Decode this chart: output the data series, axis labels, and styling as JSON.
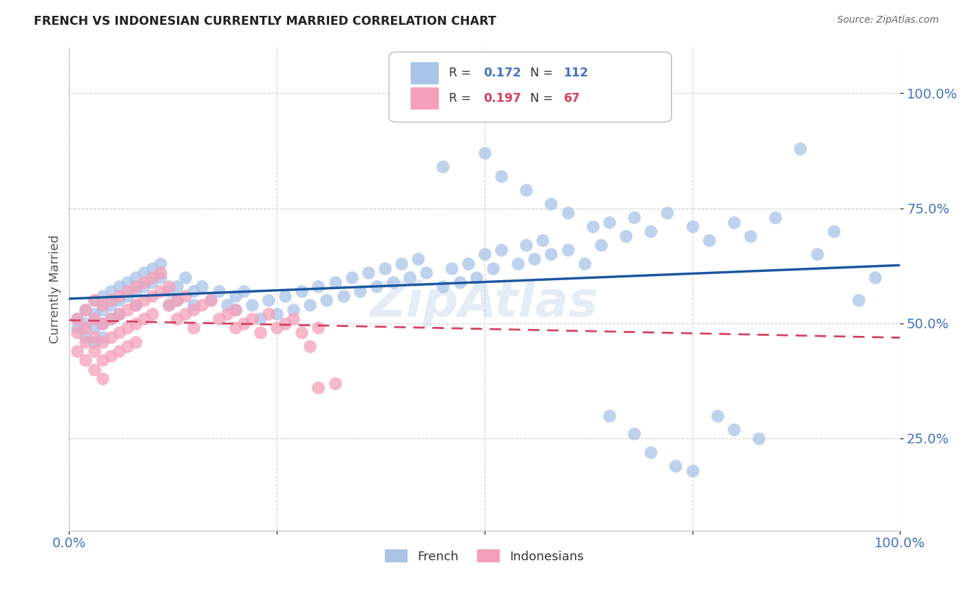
{
  "title": "FRENCH VS INDONESIAN CURRENTLY MARRIED CORRELATION CHART",
  "source": "Source: ZipAtlas.com",
  "ylabel": "Currently Married",
  "ytick_labels": [
    "100.0%",
    "75.0%",
    "50.0%",
    "25.0%"
  ],
  "ytick_values": [
    1.0,
    0.75,
    0.5,
    0.25
  ],
  "xlim": [
    0.0,
    1.0
  ],
  "ylim": [
    0.05,
    1.1
  ],
  "french_color": "#aac4e8",
  "indonesian_color": "#f5a0b8",
  "french_line_color": "#1a56a0",
  "indonesian_line_color": "#d44060",
  "axis_label_color": "#4472c4",
  "background_color": "#ffffff",
  "grid_color": "#cccccc",
  "french_R": 0.172,
  "french_N": 112,
  "indonesian_R": 0.197,
  "indonesian_N": 67,
  "watermark_text": "ZipAtlas",
  "watermark_color": "#a8c4e0",
  "french_x": [
    0.01,
    0.01,
    0.02,
    0.02,
    0.02,
    0.03,
    0.03,
    0.03,
    0.03,
    0.04,
    0.04,
    0.04,
    0.04,
    0.05,
    0.05,
    0.05,
    0.06,
    0.06,
    0.06,
    0.07,
    0.07,
    0.08,
    0.08,
    0.08,
    0.09,
    0.09,
    0.1,
    0.1,
    0.11,
    0.11,
    0.12,
    0.12,
    0.13,
    0.13,
    0.14,
    0.15,
    0.15,
    0.16,
    0.17,
    0.18,
    0.19,
    0.2,
    0.2,
    0.21,
    0.22,
    0.23,
    0.24,
    0.25,
    0.26,
    0.27,
    0.28,
    0.29,
    0.3,
    0.31,
    0.32,
    0.33,
    0.34,
    0.35,
    0.36,
    0.37,
    0.38,
    0.39,
    0.4,
    0.41,
    0.42,
    0.43,
    0.45,
    0.46,
    0.47,
    0.48,
    0.49,
    0.5,
    0.51,
    0.52,
    0.54,
    0.55,
    0.56,
    0.57,
    0.58,
    0.6,
    0.62,
    0.64,
    0.65,
    0.67,
    0.68,
    0.7,
    0.72,
    0.75,
    0.77,
    0.8,
    0.82,
    0.85,
    0.88,
    0.9,
    0.92,
    0.95,
    0.97,
    0.45,
    0.5,
    0.52,
    0.55,
    0.58,
    0.6,
    0.63,
    0.65,
    0.68,
    0.7,
    0.73,
    0.75,
    0.78,
    0.8,
    0.83
  ],
  "french_y": [
    0.51,
    0.49,
    0.53,
    0.5,
    0.47,
    0.55,
    0.52,
    0.49,
    0.46,
    0.56,
    0.53,
    0.5,
    0.47,
    0.57,
    0.54,
    0.51,
    0.58,
    0.55,
    0.52,
    0.59,
    0.56,
    0.6,
    0.57,
    0.54,
    0.61,
    0.58,
    0.62,
    0.59,
    0.63,
    0.6,
    0.57,
    0.54,
    0.58,
    0.55,
    0.6,
    0.57,
    0.54,
    0.58,
    0.55,
    0.57,
    0.54,
    0.56,
    0.53,
    0.57,
    0.54,
    0.51,
    0.55,
    0.52,
    0.56,
    0.53,
    0.57,
    0.54,
    0.58,
    0.55,
    0.59,
    0.56,
    0.6,
    0.57,
    0.61,
    0.58,
    0.62,
    0.59,
    0.63,
    0.6,
    0.64,
    0.61,
    0.58,
    0.62,
    0.59,
    0.63,
    0.6,
    0.65,
    0.62,
    0.66,
    0.63,
    0.67,
    0.64,
    0.68,
    0.65,
    0.66,
    0.63,
    0.67,
    0.72,
    0.69,
    0.73,
    0.7,
    0.74,
    0.71,
    0.68,
    0.72,
    0.69,
    0.73,
    0.88,
    0.65,
    0.7,
    0.55,
    0.6,
    0.84,
    0.87,
    0.82,
    0.79,
    0.76,
    0.74,
    0.71,
    0.3,
    0.26,
    0.22,
    0.19,
    0.18,
    0.3,
    0.27,
    0.25
  ],
  "indonesian_x": [
    0.01,
    0.01,
    0.01,
    0.02,
    0.02,
    0.02,
    0.02,
    0.03,
    0.03,
    0.03,
    0.03,
    0.03,
    0.04,
    0.04,
    0.04,
    0.04,
    0.04,
    0.05,
    0.05,
    0.05,
    0.05,
    0.06,
    0.06,
    0.06,
    0.06,
    0.07,
    0.07,
    0.07,
    0.07,
    0.08,
    0.08,
    0.08,
    0.08,
    0.09,
    0.09,
    0.09,
    0.1,
    0.1,
    0.1,
    0.11,
    0.11,
    0.12,
    0.12,
    0.13,
    0.13,
    0.14,
    0.14,
    0.15,
    0.15,
    0.16,
    0.17,
    0.18,
    0.19,
    0.2,
    0.2,
    0.21,
    0.22,
    0.23,
    0.24,
    0.25,
    0.26,
    0.27,
    0.28,
    0.29,
    0.3,
    0.3,
    0.32
  ],
  "indonesian_y": [
    0.51,
    0.48,
    0.44,
    0.53,
    0.49,
    0.46,
    0.42,
    0.55,
    0.51,
    0.47,
    0.44,
    0.4,
    0.54,
    0.5,
    0.46,
    0.42,
    0.38,
    0.55,
    0.51,
    0.47,
    0.43,
    0.56,
    0.52,
    0.48,
    0.44,
    0.57,
    0.53,
    0.49,
    0.45,
    0.58,
    0.54,
    0.5,
    0.46,
    0.59,
    0.55,
    0.51,
    0.6,
    0.56,
    0.52,
    0.61,
    0.57,
    0.58,
    0.54,
    0.55,
    0.51,
    0.56,
    0.52,
    0.53,
    0.49,
    0.54,
    0.55,
    0.51,
    0.52,
    0.53,
    0.49,
    0.5,
    0.51,
    0.48,
    0.52,
    0.49,
    0.5,
    0.51,
    0.48,
    0.45,
    0.49,
    0.36,
    0.37
  ]
}
